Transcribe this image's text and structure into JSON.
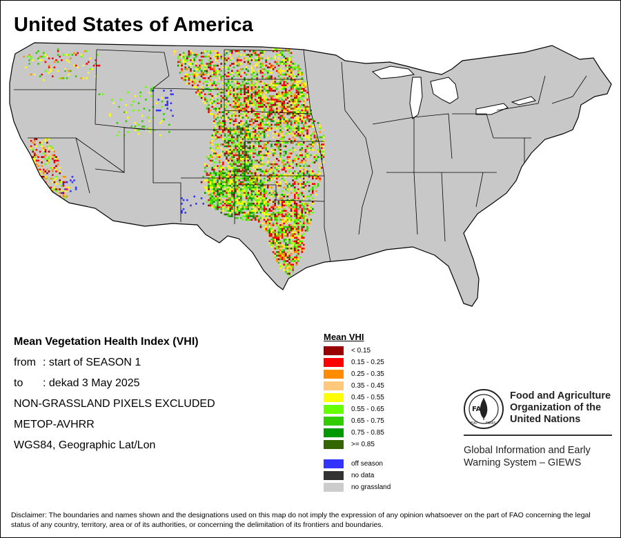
{
  "title": "United States of America",
  "info": {
    "heading": "Mean Vegetation Health Index (VHI)",
    "from_label": "from",
    "from_value": ": start of SEASON 1",
    "to_label": "to",
    "to_value": ": dekad 3 May 2025",
    "exclusion": "NON-GRASSLAND PIXELS EXCLUDED",
    "sensor": "METOP-AVHRR",
    "projection": "WGS84, Geographic Lat/Lon"
  },
  "legend": {
    "title": "Mean VHI",
    "classes": [
      {
        "label": "< 0.15",
        "color": "#990000"
      },
      {
        "label": "0.15 - 0.25",
        "color": "#ff0000"
      },
      {
        "label": "0.25 - 0.35",
        "color": "#ff8c00"
      },
      {
        "label": "0.35 - 0.45",
        "color": "#ffc87a"
      },
      {
        "label": "0.45 - 0.55",
        "color": "#ffff00"
      },
      {
        "label": "0.55 - 0.65",
        "color": "#66ff00"
      },
      {
        "label": "0.65 - 0.75",
        "color": "#33cc00"
      },
      {
        "label": "0.75 - 0.85",
        "color": "#009900"
      },
      {
        "label": ">= 0.85",
        "color": "#336600"
      }
    ],
    "special": [
      {
        "label": "off season",
        "color": "#3333ff"
      },
      {
        "label": "no data",
        "color": "#333333"
      },
      {
        "label": "no grassland",
        "color": "#cccccc"
      }
    ]
  },
  "organization": {
    "name_line1": "Food and Agriculture",
    "name_line2": "Organization of the",
    "name_line3": "United Nations",
    "logo_letters": "FAO",
    "logo_motto_left": "FIAT",
    "logo_motto_right": "PANIS",
    "system_line1": "Global Information and Early",
    "system_line2": "Warning System – GIEWS"
  },
  "disclaimer": "Disclaimer: The boundaries and names shown and the designations used on this map do not imply the expression of any opinion whatsoever on the part of FAO concerning the legal status of any country, territory, area or of its authorities, or concerning the delimitation of its frontiers and boundaries."
}
